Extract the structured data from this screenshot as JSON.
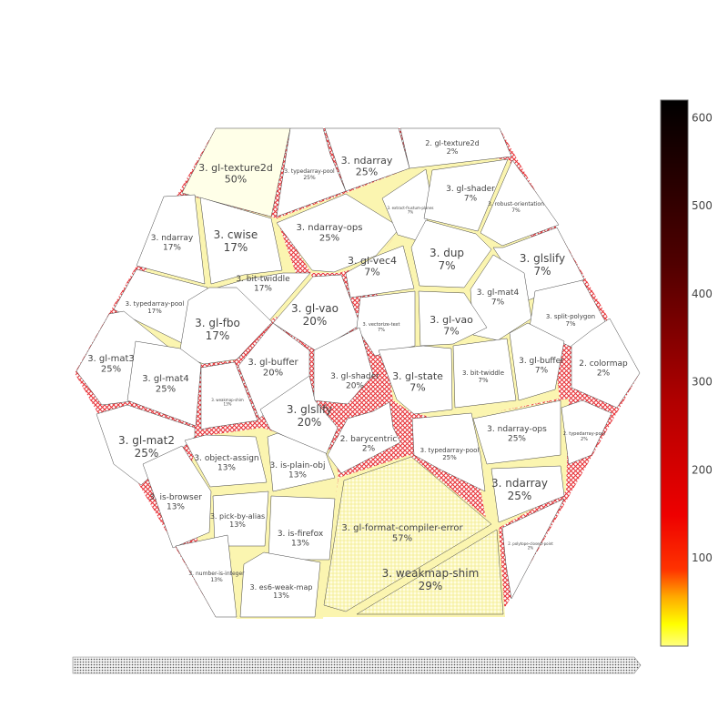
{
  "chart_data": {
    "type": "voronoi_treemap",
    "colorscale": [
      "#fffdbe",
      "#ffff00",
      "#ffaa00",
      "#ff0000",
      "#b00000",
      "#500000",
      "#000000"
    ],
    "colorbar": {
      "min": 0,
      "max": 620,
      "ticks": [
        100,
        200,
        300,
        400,
        500,
        600
      ]
    },
    "pathbar": {
      "text": ""
    },
    "cells": [
      {
        "id": "c1",
        "name": "3. gl-texture2d",
        "percent": "50%",
        "value": 2
      },
      {
        "id": "c2",
        "name": "3. typedarray-pool",
        "percent": "25%",
        "value": 1
      },
      {
        "id": "c3",
        "name": "3. ndarray",
        "percent": "25%",
        "value": 1
      },
      {
        "id": "c4",
        "name": "2. gl-texture2d",
        "percent": "2%",
        "value": 1
      },
      {
        "id": "c5",
        "name": "3. ndarray",
        "percent": "17%",
        "value": 1
      },
      {
        "id": "c6",
        "name": "3. cwise",
        "percent": "17%",
        "value": 1
      },
      {
        "id": "c7",
        "name": "3. ndarray-ops",
        "percent": "25%",
        "value": 1
      },
      {
        "id": "c8",
        "name": "3. extract-frustum-planes",
        "percent": "7%",
        "value": 1
      },
      {
        "id": "c9",
        "name": "3. gl-shader",
        "percent": "7%",
        "value": 1
      },
      {
        "id": "c10",
        "name": "3. robust-orientation",
        "percent": "7%",
        "value": 1
      },
      {
        "id": "c11",
        "name": "3. typedarray-pool",
        "percent": "17%",
        "value": 1
      },
      {
        "id": "c12",
        "name": "3. bit-twiddle",
        "percent": "17%",
        "value": 1
      },
      {
        "id": "c13",
        "name": "3. gl-vec4",
        "percent": "7%",
        "value": 1
      },
      {
        "id": "c14",
        "name": "3. dup",
        "percent": "7%",
        "value": 1
      },
      {
        "id": "c15",
        "name": "3. glslify",
        "percent": "7%",
        "value": 1
      },
      {
        "id": "c16",
        "name": "3. gl-fbo",
        "percent": "17%",
        "value": 1
      },
      {
        "id": "c17",
        "name": "3. gl-vao",
        "percent": "20%",
        "value": 1
      },
      {
        "id": "c18",
        "name": "3. gl-mat4",
        "percent": "7%",
        "value": 1
      },
      {
        "id": "c19",
        "name": "3. split-polygon",
        "percent": "7%",
        "value": 1
      },
      {
        "id": "c20",
        "name": "3. gl-mat3",
        "percent": "25%",
        "value": 1
      },
      {
        "id": "c21",
        "name": "3. vectorize-text",
        "percent": "7%",
        "value": 1
      },
      {
        "id": "c22",
        "name": "3. gl-vao",
        "percent": "7%",
        "value": 1
      },
      {
        "id": "c23",
        "name": "3. gl-mat4",
        "percent": "25%",
        "value": 1
      },
      {
        "id": "c24",
        "name": "3. gl-buffer",
        "percent": "20%",
        "value": 1
      },
      {
        "id": "c25",
        "name": "3. gl-shader",
        "percent": "20%",
        "value": 1
      },
      {
        "id": "c26",
        "name": "3. gl-buffer",
        "percent": "7%",
        "value": 1
      },
      {
        "id": "c27",
        "name": "2. colormap",
        "percent": "2%",
        "value": 1
      },
      {
        "id": "c28",
        "name": "3. gl-state",
        "percent": "7%",
        "value": 1
      },
      {
        "id": "c29",
        "name": "3. bit-twiddle",
        "percent": "7%",
        "value": 1
      },
      {
        "id": "c30",
        "name": "3. weakmap-shim",
        "percent": "13%",
        "value": 1
      },
      {
        "id": "c31",
        "name": "3. glslify",
        "percent": "20%",
        "value": 1
      },
      {
        "id": "c32",
        "name": "3. gl-mat2",
        "percent": "25%",
        "value": 1
      },
      {
        "id": "c33",
        "name": "3. ndarray-ops",
        "percent": "25%",
        "value": 1
      },
      {
        "id": "c34",
        "name": "2. typedarray-pool",
        "percent": "2%",
        "value": 1
      },
      {
        "id": "c35",
        "name": "2. barycentric",
        "percent": "2%",
        "value": 1
      },
      {
        "id": "c36",
        "name": "3. typedarray-pool",
        "percent": "25%",
        "value": 1
      },
      {
        "id": "c37",
        "name": "3. object-assign",
        "percent": "13%",
        "value": 1
      },
      {
        "id": "c38",
        "name": "3. is-plain-obj",
        "percent": "13%",
        "value": 1
      },
      {
        "id": "c39",
        "name": "3. ndarray",
        "percent": "25%",
        "value": 1
      },
      {
        "id": "c40",
        "name": "3. is-browser",
        "percent": "13%",
        "value": 1
      },
      {
        "id": "c41",
        "name": "3. pick-by-alias",
        "percent": "13%",
        "value": 1
      },
      {
        "id": "c42",
        "name": "3. is-firefox",
        "percent": "13%",
        "value": 1
      },
      {
        "id": "c43",
        "name": "3. gl-format-compiler-error",
        "percent": "57%",
        "value": 4
      },
      {
        "id": "c44",
        "name": "2. polytope-closest-point",
        "percent": "2%",
        "value": 1
      },
      {
        "id": "c45",
        "name": "3. number-is-integer",
        "percent": "13%",
        "value": 1
      },
      {
        "id": "c46",
        "name": "3. es6-weak-map",
        "percent": "13%",
        "value": 1
      },
      {
        "id": "c47",
        "name": "3. weakmap-shim",
        "percent": "29%",
        "value": 2
      }
    ]
  }
}
